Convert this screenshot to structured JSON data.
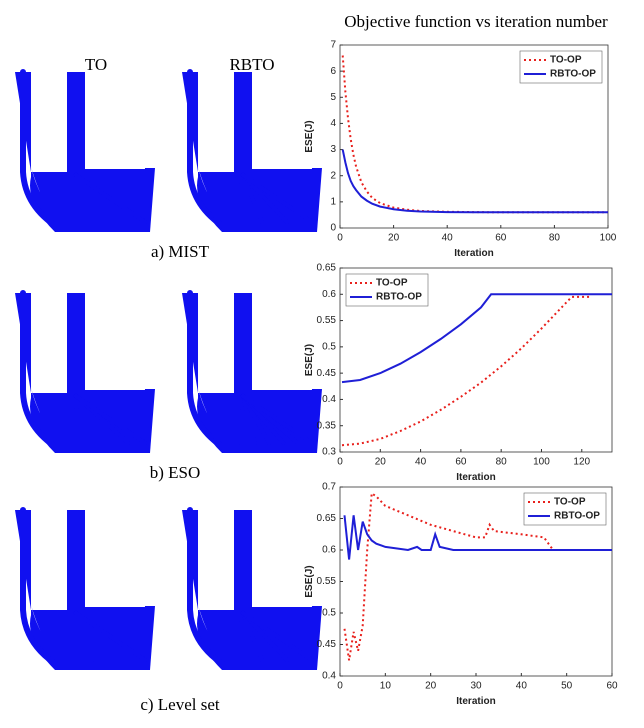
{
  "title": "Objective function vs iteration number",
  "column_labels": [
    "TO",
    "RBTO"
  ],
  "panel_captions": [
    "a) MIST",
    "b) ESO",
    "c) Level set"
  ],
  "chart_data": [
    {
      "type": "line",
      "xlabel": "Iteration",
      "ylabel": "ESE(J)",
      "xlim": [
        0,
        100
      ],
      "xticks": [
        0,
        20,
        40,
        60,
        80,
        100
      ],
      "ylim": [
        0,
        7
      ],
      "yticks": [
        0,
        1,
        2,
        3,
        4,
        5,
        6,
        7
      ],
      "legend": "top-right",
      "series": [
        {
          "name": "TO-OP",
          "color": "#e8201c",
          "dashed": true,
          "x": [
            1,
            2,
            3,
            4,
            5,
            6,
            8,
            10,
            12,
            15,
            20,
            25,
            30,
            40,
            50,
            60,
            80,
            100
          ],
          "values": [
            6.6,
            5.2,
            4.2,
            3.4,
            2.8,
            2.35,
            1.75,
            1.4,
            1.15,
            0.95,
            0.78,
            0.7,
            0.65,
            0.62,
            0.61,
            0.6,
            0.6,
            0.6
          ]
        },
        {
          "name": "RBTO-OP",
          "color": "#1f1fd6",
          "dashed": false,
          "x": [
            1,
            2,
            3,
            4,
            5,
            6,
            8,
            10,
            12,
            15,
            20,
            25,
            30,
            40,
            50,
            60,
            80,
            100
          ],
          "values": [
            3.0,
            2.5,
            2.1,
            1.8,
            1.6,
            1.45,
            1.2,
            1.05,
            0.93,
            0.82,
            0.72,
            0.66,
            0.63,
            0.61,
            0.6,
            0.6,
            0.6,
            0.6
          ]
        }
      ]
    },
    {
      "type": "line",
      "xlabel": "Iteration",
      "ylabel": "ESE(J)",
      "xlim": [
        0,
        135
      ],
      "xticks": [
        0,
        20,
        40,
        60,
        80,
        100,
        120
      ],
      "ylim": [
        0.3,
        0.65
      ],
      "yticks": [
        0.3,
        0.35,
        0.4,
        0.45,
        0.5,
        0.55,
        0.6,
        0.65
      ],
      "legend": "top-left",
      "series": [
        {
          "name": "TO-OP",
          "color": "#e8201c",
          "dashed": true,
          "x": [
            1,
            10,
            20,
            30,
            40,
            50,
            60,
            70,
            80,
            90,
            100,
            110,
            115,
            125
          ],
          "values": [
            0.313,
            0.316,
            0.325,
            0.34,
            0.358,
            0.38,
            0.405,
            0.432,
            0.463,
            0.497,
            0.535,
            0.575,
            0.595,
            0.595
          ]
        },
        {
          "name": "RBTO-OP",
          "color": "#1f1fd6",
          "dashed": false,
          "x": [
            1,
            10,
            20,
            30,
            40,
            50,
            60,
            70,
            75,
            100,
            135
          ],
          "values": [
            0.433,
            0.437,
            0.45,
            0.468,
            0.49,
            0.515,
            0.543,
            0.575,
            0.6,
            0.6,
            0.6
          ]
        }
      ]
    },
    {
      "type": "line",
      "xlabel": "Iteration",
      "ylabel": "ESE(J)",
      "xlim": [
        0,
        60
      ],
      "xticks": [
        0,
        10,
        20,
        30,
        40,
        50,
        60
      ],
      "ylim": [
        0.4,
        0.7
      ],
      "yticks": [
        0.4,
        0.45,
        0.5,
        0.55,
        0.6,
        0.65,
        0.7
      ],
      "legend": "top-right",
      "series": [
        {
          "name": "TO-OP",
          "color": "#e8201c",
          "dashed": true,
          "x": [
            1,
            2,
            3,
            4,
            5,
            6,
            7,
            8,
            10,
            15,
            20,
            25,
            30,
            32,
            33,
            34,
            40,
            45,
            46,
            47
          ],
          "values": [
            0.475,
            0.425,
            0.47,
            0.44,
            0.48,
            0.6,
            0.69,
            0.685,
            0.67,
            0.655,
            0.64,
            0.63,
            0.62,
            0.62,
            0.64,
            0.63,
            0.625,
            0.62,
            0.61,
            0.6
          ]
        },
        {
          "name": "RBTO-OP",
          "color": "#1f1fd6",
          "dashed": false,
          "x": [
            1,
            2,
            3,
            4,
            5,
            6,
            7,
            8,
            10,
            15,
            17,
            18,
            20,
            21,
            22,
            25,
            30,
            40,
            50,
            60
          ],
          "values": [
            0.655,
            0.585,
            0.655,
            0.6,
            0.645,
            0.625,
            0.615,
            0.61,
            0.605,
            0.6,
            0.605,
            0.6,
            0.6,
            0.625,
            0.605,
            0.6,
            0.6,
            0.6,
            0.6,
            0.6
          ]
        }
      ]
    }
  ]
}
